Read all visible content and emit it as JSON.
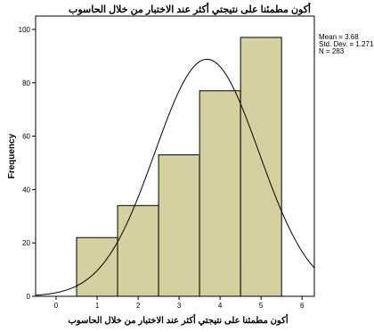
{
  "chart_data": {
    "type": "bar",
    "title": "أكون مطمئنا على نتيجتي أكثر عند الاختبار من خلال الحاسوب",
    "xlabel": "أكون مطمئنا على نتيجتي أكثر عند الاختبار من خلال الحاسوب",
    "ylabel": "Frequency",
    "categories": [
      "1",
      "2",
      "3",
      "4",
      "5"
    ],
    "values": [
      22,
      34,
      53,
      77,
      97
    ],
    "xlim": [
      -0.5,
      6.3
    ],
    "ylim": [
      0,
      105
    ],
    "x_ticks": [
      "0",
      "1",
      "2",
      "3",
      "4",
      "5",
      "6"
    ],
    "y_ticks": [
      "0",
      "20",
      "40",
      "60",
      "80",
      "100"
    ],
    "normal_curve": {
      "mean": 3.68,
      "std_dev": 1.271,
      "n": 283
    },
    "stats": [
      "Mean = 3.68",
      "Std. Dev. = 1.271",
      "N = 283"
    ],
    "bar_color": "#d4d0a0",
    "grid": false,
    "legend": "none"
  }
}
